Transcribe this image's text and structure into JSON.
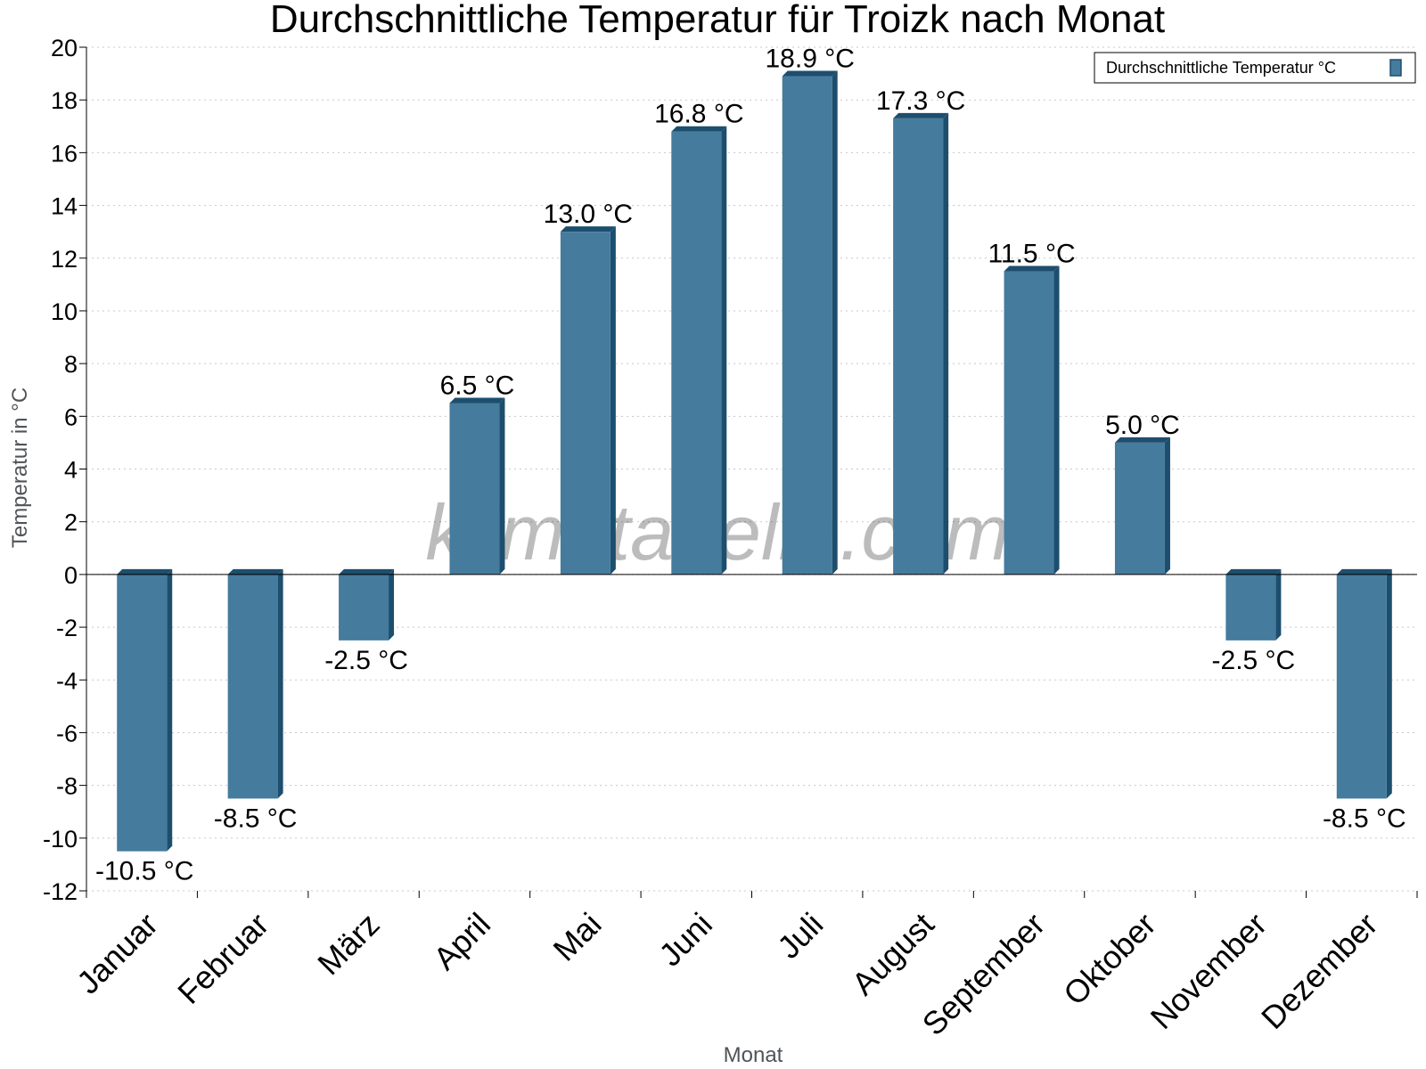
{
  "chart_data": {
    "type": "bar",
    "title": "Durchschnittliche Temperatur für Troizk nach Monat",
    "xlabel": "Monat",
    "ylabel": "Temperatur in °C",
    "categories": [
      "Januar",
      "Februar",
      "März",
      "April",
      "Mai",
      "Juni",
      "Juli",
      "August",
      "September",
      "Oktober",
      "November",
      "Dezember"
    ],
    "series": [
      {
        "name": "Durchschnittliche Temperatur °C",
        "values": [
          -10.5,
          -8.5,
          -2.5,
          6.5,
          13.0,
          16.8,
          18.9,
          17.3,
          11.5,
          5.0,
          -2.5,
          -8.5
        ],
        "labels": [
          "-10.5 °C",
          "-8.5 °C",
          "-2.5 °C",
          "6.5 °C",
          "13.0 °C",
          "16.8 °C",
          "18.9 °C",
          "17.3 °C",
          "11.5 °C",
          "5.0 °C",
          "-2.5 °C",
          "-8.5 °C"
        ]
      }
    ],
    "ylim": [
      -12,
      20
    ],
    "yticks": [
      20,
      18,
      16,
      14,
      12,
      10,
      8,
      6,
      4,
      2,
      0,
      -2,
      -4,
      -6,
      -8,
      -10,
      -12
    ],
    "grid": true,
    "legend_position": "top-right",
    "colors": {
      "bar_face": "#457b9d",
      "bar_side": "#1d4e6e",
      "grid": "#c8c8c8",
      "axis": "#000000"
    }
  },
  "watermark": "klimatabelle.com"
}
